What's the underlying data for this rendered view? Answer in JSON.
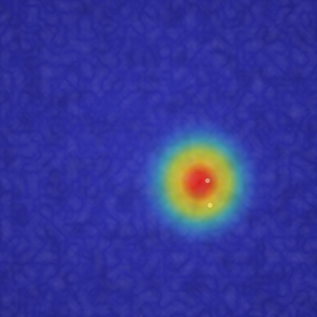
{
  "image": {
    "description_kind": "anomaly heatmap overlay",
    "base_color": "#2a2a9a",
    "hotspot_colors": {
      "core": "#d8281e",
      "mid": "#e6c81e",
      "outer": "#3fb4a0",
      "fade": "#2a2a9a"
    }
  }
}
